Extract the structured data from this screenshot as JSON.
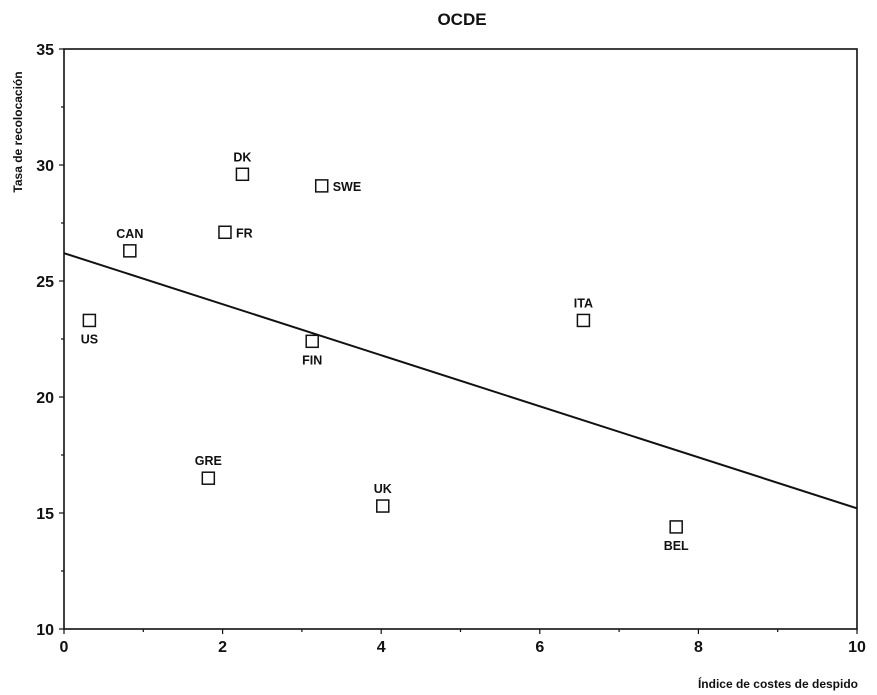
{
  "chart_data": {
    "type": "scatter",
    "title": "OCDE",
    "xlabel": "Índice de costes de despido",
    "ylabel": "Tasa de recolocación",
    "xlim": [
      0,
      10
    ],
    "ylim": [
      10,
      35
    ],
    "x_ticks": [
      "0",
      "2",
      "4",
      "6",
      "8",
      "10"
    ],
    "y_ticks": [
      "10",
      "15",
      "20",
      "25",
      "30",
      "35"
    ],
    "grid": false,
    "points": [
      {
        "label": "US",
        "x": 0.32,
        "y": 23.3,
        "label_pos": "below"
      },
      {
        "label": "CAN",
        "x": 0.83,
        "y": 26.3,
        "label_pos": "above"
      },
      {
        "label": "GRE",
        "x": 1.82,
        "y": 16.5,
        "label_pos": "above"
      },
      {
        "label": "FR",
        "x": 2.03,
        "y": 27.1,
        "label_pos": "right"
      },
      {
        "label": "DK",
        "x": 2.25,
        "y": 29.6,
        "label_pos": "above"
      },
      {
        "label": "FIN",
        "x": 3.13,
        "y": 22.4,
        "label_pos": "below"
      },
      {
        "label": "SWE",
        "x": 3.25,
        "y": 29.1,
        "label_pos": "right"
      },
      {
        "label": "UK",
        "x": 4.02,
        "y": 15.3,
        "label_pos": "above"
      },
      {
        "label": "ITA",
        "x": 6.55,
        "y": 23.3,
        "label_pos": "above"
      },
      {
        "label": "BEL",
        "x": 7.72,
        "y": 14.4,
        "label_pos": "below"
      }
    ],
    "trend_line": {
      "x": [
        0,
        10
      ],
      "y": [
        26.2,
        15.2
      ]
    }
  }
}
